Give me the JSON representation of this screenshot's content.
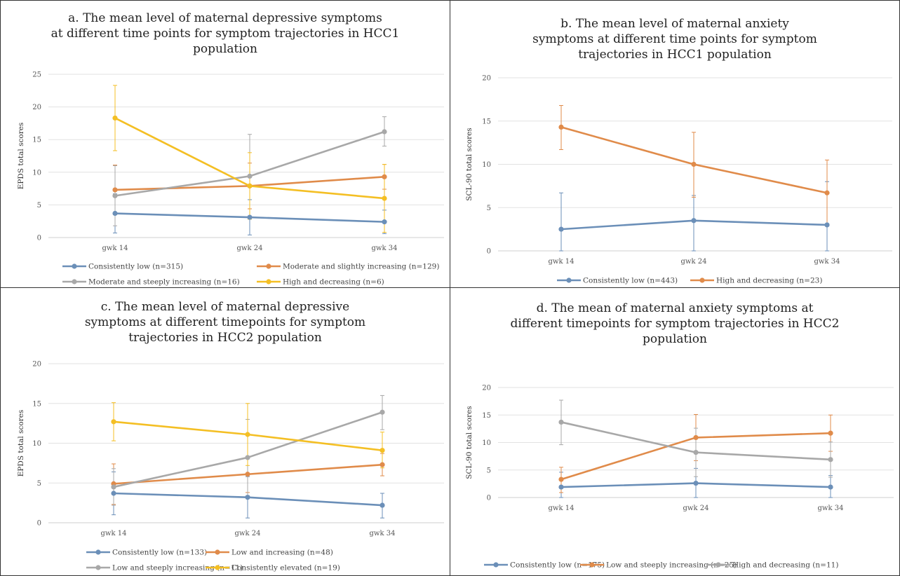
{
  "palette": {
    "blue": "#6b8fb8",
    "orange": "#e08b4a",
    "gray": "#a8a8a8",
    "yellow": "#f4bf24",
    "grid": "#e2e2e2"
  },
  "chart_data": [
    {
      "type": "line",
      "title": "a. The mean level of maternal depressive symptoms at different time points for symptom trajectories in HCC1 population",
      "title_lines": [
        "a. The mean level of maternal depressive symptoms",
        "at different time points for symptom trajectories in HCC1",
        "population"
      ],
      "ylabel": "EPDS total scores",
      "categories": [
        "gwk 14",
        "gwk 24",
        "gwk 34"
      ],
      "ylim": [
        0,
        25
      ],
      "yticks": [
        0,
        5,
        10,
        15,
        20,
        25
      ],
      "series": [
        {
          "name": "Consistently low (n=315)",
          "color": "blue",
          "values": [
            3.7,
            3.1,
            2.4
          ],
          "lower": [
            0.7,
            0.4,
            0.6
          ],
          "upper": [
            6.7,
            5.8,
            4.2
          ]
        },
        {
          "name": "Moderate and slightly increasing (n=129)",
          "color": "orange",
          "values": [
            7.3,
            7.9,
            9.3
          ],
          "lower": [
            3.5,
            4.4,
            7.4
          ],
          "upper": [
            11.1,
            11.4,
            11.2
          ]
        },
        {
          "name": "Moderate and steeply increasing (n=16)",
          "color": "gray",
          "values": [
            6.4,
            9.4,
            16.2
          ],
          "lower": [
            1.8,
            3.0,
            14.0
          ],
          "upper": [
            11.0,
            15.8,
            18.5
          ]
        },
        {
          "name": "High and decreasing (n=6)",
          "color": "yellow",
          "values": [
            18.3,
            7.9,
            6.0
          ],
          "lower": [
            13.3,
            2.8,
            0.8
          ],
          "upper": [
            23.3,
            13.0,
            11.2
          ]
        }
      ]
    },
    {
      "type": "line",
      "title": "b. The mean level of maternal anxiety symptoms at different time points for symptom trajectories in HCC1 population",
      "title_lines": [
        "b. The mean level of maternal anxiety",
        "symptoms at different time points for symptom",
        "trajectories in HCC1 population"
      ],
      "ylabel": "SCL-90 total scores",
      "categories": [
        "gwk 14",
        "gwk 24",
        "gwk 34"
      ],
      "ylim": [
        0,
        20
      ],
      "yticks": [
        0,
        5,
        10,
        15,
        20
      ],
      "series": [
        {
          "name": "Consistently low (n=443)",
          "color": "blue",
          "values": [
            2.5,
            3.5,
            3.0
          ],
          "lower": [
            0,
            0,
            0
          ],
          "upper": [
            6.7,
            6.4,
            8.0
          ]
        },
        {
          "name": "High and decreasing (n=23)",
          "color": "orange",
          "values": [
            14.3,
            10.0,
            6.7
          ],
          "lower": [
            11.7,
            6.2,
            2.9
          ],
          "upper": [
            16.8,
            13.7,
            10.5
          ]
        }
      ]
    },
    {
      "type": "line",
      "title": "c. The mean level of maternal depressive symptoms at different timepoints for symptom trajectories in HCC2 population",
      "title_lines": [
        "c. The mean level of maternal depressive",
        "symptoms at different timepoints for symptom",
        "trajectories in HCC2 population"
      ],
      "ylabel": "EPDS total scores",
      "categories": [
        "gwk 14",
        "gwk 24",
        "gwk 34"
      ],
      "ylim": [
        0,
        20
      ],
      "yticks": [
        0,
        5,
        10,
        15,
        20
      ],
      "series": [
        {
          "name": "Consistently low (n=133)",
          "color": "blue",
          "values": [
            3.7,
            3.2,
            2.2
          ],
          "lower": [
            1.0,
            0.6,
            0.6
          ],
          "upper": [
            6.4,
            5.8,
            3.7
          ]
        },
        {
          "name": "Low and increasing (n=48)",
          "color": "orange",
          "values": [
            4.9,
            6.1,
            7.3
          ],
          "lower": [
            2.3,
            3.8,
            5.9
          ],
          "upper": [
            7.4,
            8.3,
            8.7
          ]
        },
        {
          "name": "Low and steeply increasing (n=11)",
          "color": "gray",
          "values": [
            4.5,
            8.2,
            13.9
          ],
          "lower": [
            2.2,
            3.4,
            11.7
          ],
          "upper": [
            6.8,
            13.0,
            16.0
          ]
        },
        {
          "name": "Consistently elevated (n=19)",
          "color": "yellow",
          "values": [
            12.7,
            11.1,
            9.1
          ],
          "lower": [
            10.3,
            7.2,
            6.9
          ],
          "upper": [
            15.1,
            15.0,
            11.4
          ]
        }
      ]
    },
    {
      "type": "line",
      "title": "d. The mean of maternal anxiety symptoms at different timepoints for symptom trajectories in HCC2 population",
      "title_lines": [
        "d. The mean of maternal anxiety symptoms at",
        "different timepoints for symptom  trajectories in HCC2",
        "population"
      ],
      "ylabel": "SCL-90 total scores",
      "categories": [
        "gwk 14",
        "gwk 24",
        "gwk 34"
      ],
      "ylim": [
        0,
        20
      ],
      "yticks": [
        0,
        5,
        10,
        15,
        20
      ],
      "series": [
        {
          "name": "Consistently low (n=175)",
          "color": "blue",
          "values": [
            1.9,
            2.6,
            1.9
          ],
          "lower": [
            0,
            0,
            0
          ],
          "upper": [
            4.6,
            5.3,
            4.0
          ]
        },
        {
          "name": "Low and steeply increasing (n=25)",
          "color": "orange",
          "values": [
            3.3,
            10.9,
            11.7
          ],
          "lower": [
            0.9,
            6.7,
            8.4
          ],
          "upper": [
            5.5,
            15.1,
            15.0
          ]
        },
        {
          "name": "High and decreasing (n=11)",
          "color": "gray",
          "values": [
            13.7,
            8.2,
            6.9
          ],
          "lower": [
            9.6,
            3.8,
            3.7
          ],
          "upper": [
            17.7,
            12.6,
            10.1
          ]
        }
      ]
    }
  ]
}
